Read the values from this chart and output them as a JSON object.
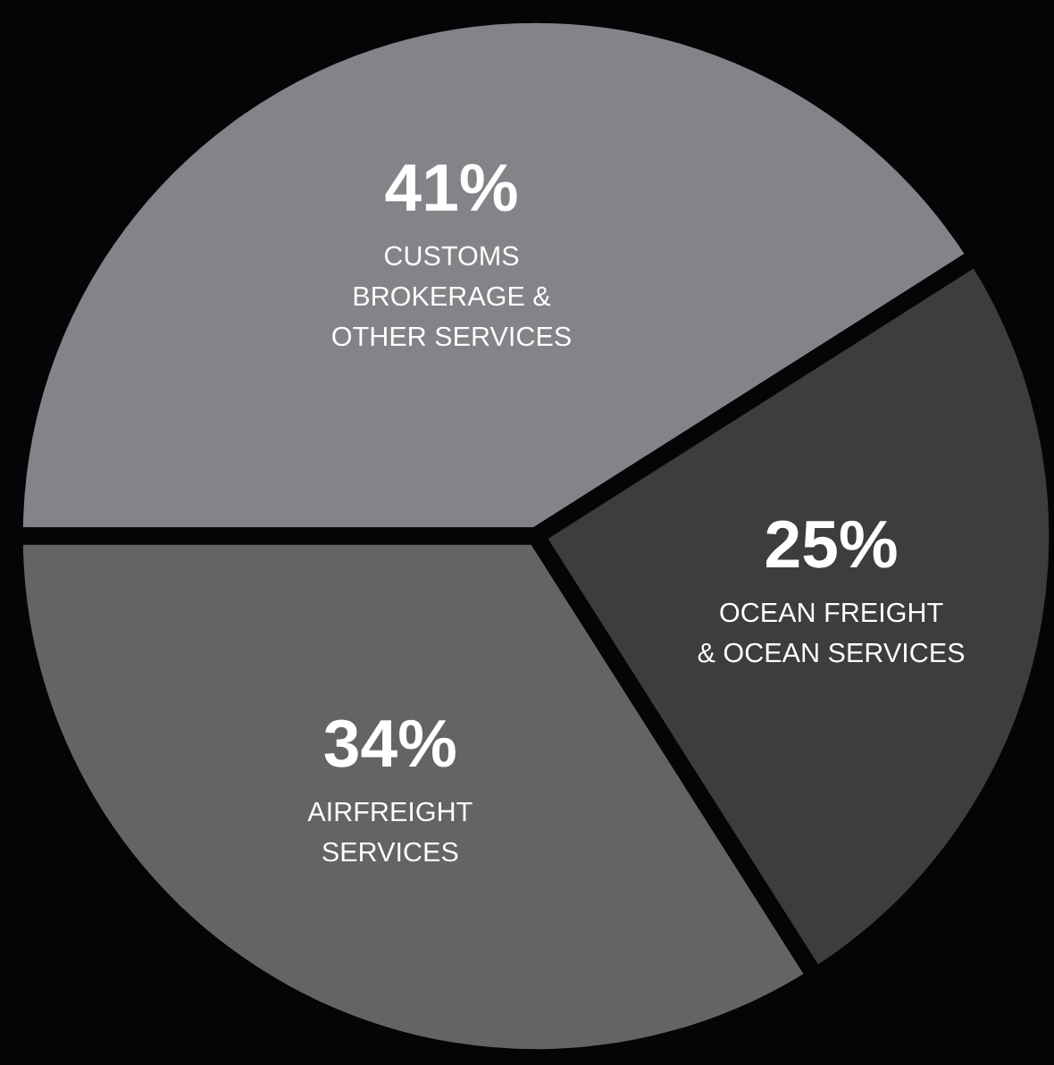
{
  "chart_data": {
    "type": "pie",
    "categories": [
      "CUSTOMS\nBROKERAGE &\nOTHER SERVICES",
      "OCEAN FREIGHT\n& OCEAN SERVICES",
      "AIRFREIGHT\nSERVICES"
    ],
    "values": [
      41,
      25,
      34
    ],
    "colors": [
      "#838487",
      "#3d3d3d",
      "#646464"
    ],
    "value_labels": [
      "41%",
      "25%",
      "34%"
    ]
  }
}
